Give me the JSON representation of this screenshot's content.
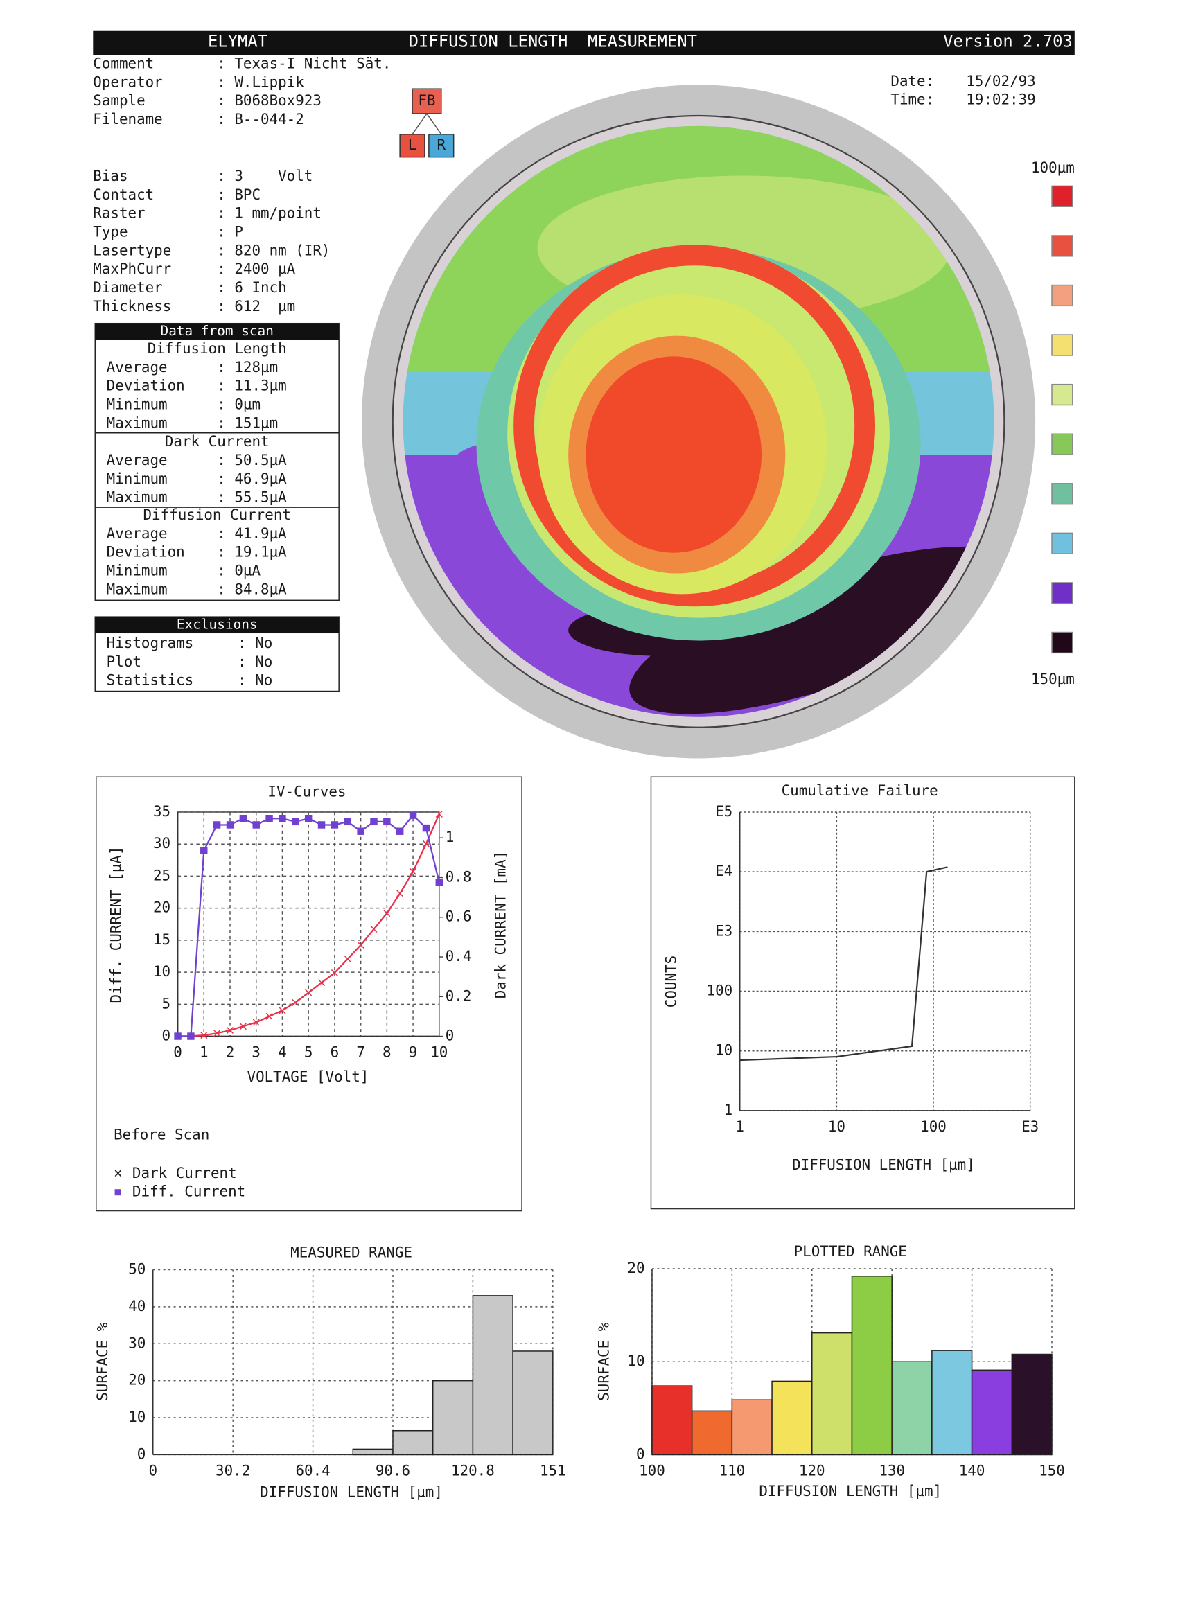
{
  "header": {
    "software": "ELYMAT",
    "title": "DIFFUSION LENGTH  MEASUREMENT",
    "version": "Version 2.703"
  },
  "info": [
    {
      "label": "Comment",
      "value": ": Texas-I Nicht Sät."
    },
    {
      "label": "Operator",
      "value": ": W.Lippik"
    },
    {
      "label": "Sample",
      "value": ": B068Box923"
    },
    {
      "label": "Filename",
      "value": ": B--044-2"
    }
  ],
  "datetime": [
    {
      "label": "Date:",
      "value": "15/02/93"
    },
    {
      "label": "Time:",
      "value": "19:02:39"
    }
  ],
  "buttons": [
    "FB",
    "L",
    "R"
  ],
  "params": [
    {
      "label": "Bias",
      "value": ": 3    Volt"
    },
    {
      "label": "Contact",
      "value": ": BPC"
    },
    {
      "label": "Raster",
      "value": ": 1 mm/point"
    },
    {
      "label": "Type",
      "value": ": P"
    },
    {
      "label": "Lasertype",
      "value": ": 820 nm (IR)"
    },
    {
      "label": "MaxPhCurr",
      "value": ": 2400 µA"
    },
    {
      "label": "Diameter",
      "value": ": 6 Inch"
    },
    {
      "label": "Thickness",
      "value": ": 612  µm"
    }
  ],
  "scan": {
    "title": "Data from scan",
    "sections": [
      {
        "title": "Diffusion Length",
        "rows": [
          {
            "label": "Average",
            "value": ": 128µm"
          },
          {
            "label": "Deviation",
            "value": ": 11.3µm"
          },
          {
            "label": "Minimum",
            "value": ": 0µm"
          },
          {
            "label": "Maximum",
            "value": ": 151µm"
          }
        ]
      },
      {
        "title": "Dark Current",
        "rows": [
          {
            "label": "Average",
            "value": ": 50.5µA"
          },
          {
            "label": "Minimum",
            "value": ": 46.9µA"
          },
          {
            "label": "Maximum",
            "value": ": 55.5µA"
          }
        ]
      },
      {
        "title": "Diffusion Current",
        "rows": [
          {
            "label": "Average",
            "value": ": 41.9µA"
          },
          {
            "label": "Deviation",
            "value": ": 19.1µA"
          },
          {
            "label": "Minimum",
            "value": ": 0µA"
          },
          {
            "label": "Maximum",
            "value": ": 84.8µA"
          }
        ]
      }
    ]
  },
  "exclusions": {
    "title": "Exclusions",
    "rows": [
      {
        "label": "Histograms",
        "value": ": No"
      },
      {
        "label": "Plot",
        "value": ": No"
      },
      {
        "label": "Statistics",
        "value": ": No"
      }
    ]
  },
  "map": {
    "legend_top": "100µm",
    "legend_bottom": "150µm",
    "colors": [
      "#e0202a",
      "#e85040",
      "#f3a080",
      "#f3e070",
      "#d6e890",
      "#88c858",
      "#70c0a0",
      "#70c0e0",
      "#7030c8",
      "#200818"
    ]
  },
  "chart_data": [
    {
      "type": "line",
      "title": "IV-Curves",
      "x_label": "VOLTAGE [Volt]",
      "y_label": "Diff. CURRENT [µA]",
      "y2_label": "Dark CURRENT [mA]",
      "annotation": "Before Scan",
      "x": [
        0,
        0.5,
        1,
        1.5,
        2,
        2.5,
        3,
        3.5,
        4,
        4.5,
        5,
        5.5,
        6,
        6.5,
        7,
        7.5,
        8,
        8.5,
        9,
        9.5,
        10
      ],
      "series": [
        {
          "name": "Dark Current",
          "color": "#e8304a",
          "axis": "y2",
          "values": [
            0,
            0.001,
            0.005,
            0.015,
            0.03,
            0.05,
            0.07,
            0.1,
            0.13,
            0.17,
            0.22,
            0.27,
            0.32,
            0.39,
            0.46,
            0.54,
            0.62,
            0.72,
            0.83,
            0.97,
            1.12
          ]
        },
        {
          "name": "Diff. Current",
          "color": "#7040d0",
          "values": [
            0,
            0,
            29,
            33,
            33,
            34,
            33,
            34,
            34,
            33.5,
            34,
            33,
            33,
            33.5,
            32,
            33.5,
            33.5,
            32,
            34.5,
            32.5,
            24
          ]
        }
      ],
      "xlim": [
        0,
        10
      ],
      "xticks": [
        0,
        1,
        2,
        3,
        4,
        5,
        6,
        7,
        8,
        9,
        10
      ],
      "ylim": [
        0,
        35
      ],
      "yticks": [
        0,
        5,
        10,
        15,
        20,
        25,
        30,
        35
      ],
      "y2lim": [
        0,
        1.13
      ],
      "y2ticks": [
        0,
        0.2,
        0.4,
        0.6,
        0.8,
        1
      ],
      "grid": true
    },
    {
      "type": "line",
      "title": "Cumulative Failure",
      "x_label": "DIFFUSION LENGTH [µm]",
      "y_label": "COUNTS",
      "x": [
        1,
        10,
        60,
        85,
        140
      ],
      "series": [
        {
          "name": "Cumulative Failure",
          "color": "#333333",
          "values": [
            7,
            8,
            12,
            10000,
            12000
          ]
        }
      ],
      "xlim": [
        1,
        1000
      ],
      "xticks": [
        1,
        10,
        100,
        {
          "value": 1000,
          "label": "E3"
        }
      ],
      "ylim": [
        1,
        100000
      ],
      "yticks": [
        1,
        10,
        100,
        {
          "value": 1000,
          "label": "E3"
        },
        {
          "value": 10000,
          "label": "E4"
        },
        {
          "value": 100000,
          "label": "E5"
        }
      ],
      "xlog": true,
      "ylog": true,
      "grid": true
    },
    {
      "type": "histogram",
      "title": "MEASURED RANGE",
      "x_label": "DIFFUSION LENGTH [µm]",
      "y_label": "SURFACE %",
      "bins": [
        0,
        15.1,
        30.2,
        45.3,
        60.4,
        75.5,
        90.6,
        105.7,
        120.8,
        135.9,
        151
      ],
      "values": [
        0,
        0,
        0,
        0,
        0,
        1.5,
        6.5,
        20,
        43,
        28
      ],
      "color": "#c8c8c8",
      "xlim": [
        0,
        151
      ],
      "xticks": [
        0,
        30.2,
        60.4,
        90.6,
        120.8,
        151
      ],
      "ylim": [
        0,
        50
      ],
      "yticks": [
        0,
        10,
        20,
        30,
        40,
        50
      ],
      "grid": true
    },
    {
      "type": "histogram",
      "title": "PLOTTED RANGE",
      "x_label": "DIFFUSION LENGTH [µm]",
      "y_label": "SURFACE %",
      "bins": [
        100,
        105,
        110,
        115,
        120,
        125,
        130,
        135,
        140,
        145,
        150
      ],
      "values": [
        7.4,
        4.7,
        5.9,
        7.9,
        13.1,
        19.2,
        10,
        11.2,
        9.1,
        10.8
      ],
      "colors": [
        "#e8302a",
        "#f06a30",
        "#f59a70",
        "#f3e25a",
        "#cfe06a",
        "#8dcc45",
        "#8ed3a8",
        "#7cc8e0",
        "#8a3ee0",
        "#2a1028"
      ],
      "xlim": [
        100,
        150
      ],
      "xticks": [
        100,
        110,
        120,
        130,
        140,
        150
      ],
      "ylim": [
        0,
        20
      ],
      "yticks": [
        0,
        10,
        20
      ],
      "grid": true
    }
  ]
}
